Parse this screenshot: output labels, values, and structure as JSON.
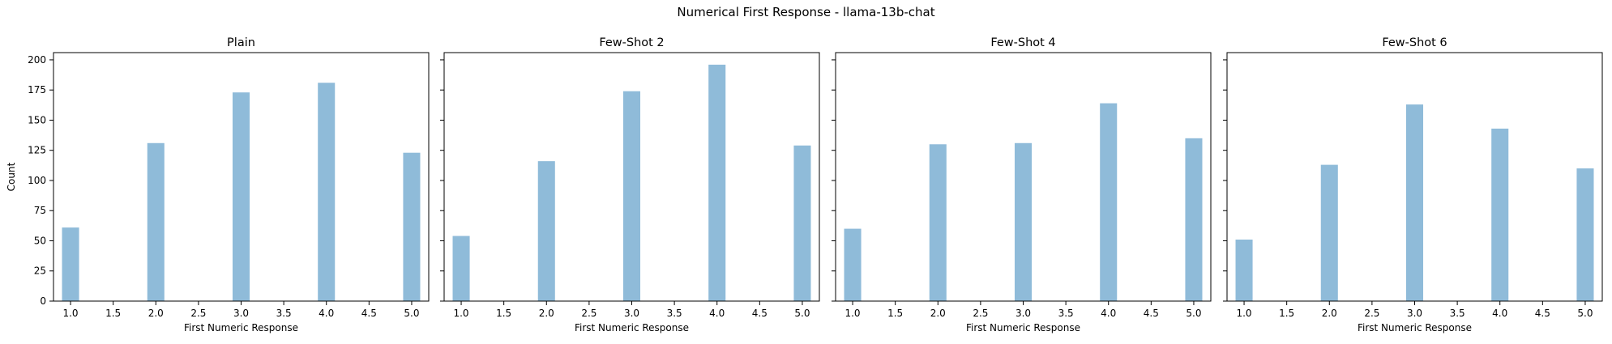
{
  "figure": {
    "suptitle": "Numerical First Response - llama-13b-chat"
  },
  "chart_data": [
    {
      "type": "bar",
      "title": "Plain",
      "xlabel": "First Numeric Response",
      "ylabel": "Count",
      "x": [
        1,
        2,
        3,
        4,
        5
      ],
      "values": [
        61,
        131,
        173,
        181,
        123
      ],
      "bar_width": 0.2,
      "xlim": [
        0.8,
        5.2
      ],
      "ylim": [
        0,
        206
      ],
      "xticks": [
        "1.0",
        "1.5",
        "2.0",
        "2.5",
        "3.0",
        "3.5",
        "4.0",
        "4.5",
        "5.0"
      ],
      "yticks": [
        "0",
        "25",
        "50",
        "75",
        "100",
        "125",
        "150",
        "175",
        "200"
      ],
      "color": "#8fbbd9"
    },
    {
      "type": "bar",
      "title": "Few-Shot 2",
      "xlabel": "First Numeric Response",
      "ylabel": "",
      "x": [
        1,
        2,
        3,
        4,
        5
      ],
      "values": [
        54,
        116,
        174,
        196,
        129
      ],
      "bar_width": 0.2,
      "xlim": [
        0.8,
        5.2
      ],
      "ylim": [
        0,
        206
      ],
      "xticks": [
        "1.0",
        "1.5",
        "2.0",
        "2.5",
        "3.0",
        "3.5",
        "4.0",
        "4.5",
        "5.0"
      ],
      "yticks": [],
      "color": "#8fbbd9"
    },
    {
      "type": "bar",
      "title": "Few-Shot 4",
      "xlabel": "First Numeric Response",
      "ylabel": "",
      "x": [
        1,
        2,
        3,
        4,
        5
      ],
      "values": [
        60,
        130,
        131,
        164,
        135
      ],
      "bar_width": 0.2,
      "xlim": [
        0.8,
        5.2
      ],
      "ylim": [
        0,
        206
      ],
      "xticks": [
        "1.0",
        "1.5",
        "2.0",
        "2.5",
        "3.0",
        "3.5",
        "4.0",
        "4.5",
        "5.0"
      ],
      "yticks": [],
      "color": "#8fbbd9"
    },
    {
      "type": "bar",
      "title": "Few-Shot 6",
      "xlabel": "First Numeric Response",
      "ylabel": "",
      "x": [
        1,
        2,
        3,
        4,
        5
      ],
      "values": [
        51,
        113,
        163,
        143,
        110
      ],
      "bar_width": 0.2,
      "xlim": [
        0.8,
        5.2
      ],
      "ylim": [
        0,
        206
      ],
      "xticks": [
        "1.0",
        "1.5",
        "2.0",
        "2.5",
        "3.0",
        "3.5",
        "4.0",
        "4.5",
        "5.0"
      ],
      "yticks": [],
      "color": "#8fbbd9"
    }
  ]
}
